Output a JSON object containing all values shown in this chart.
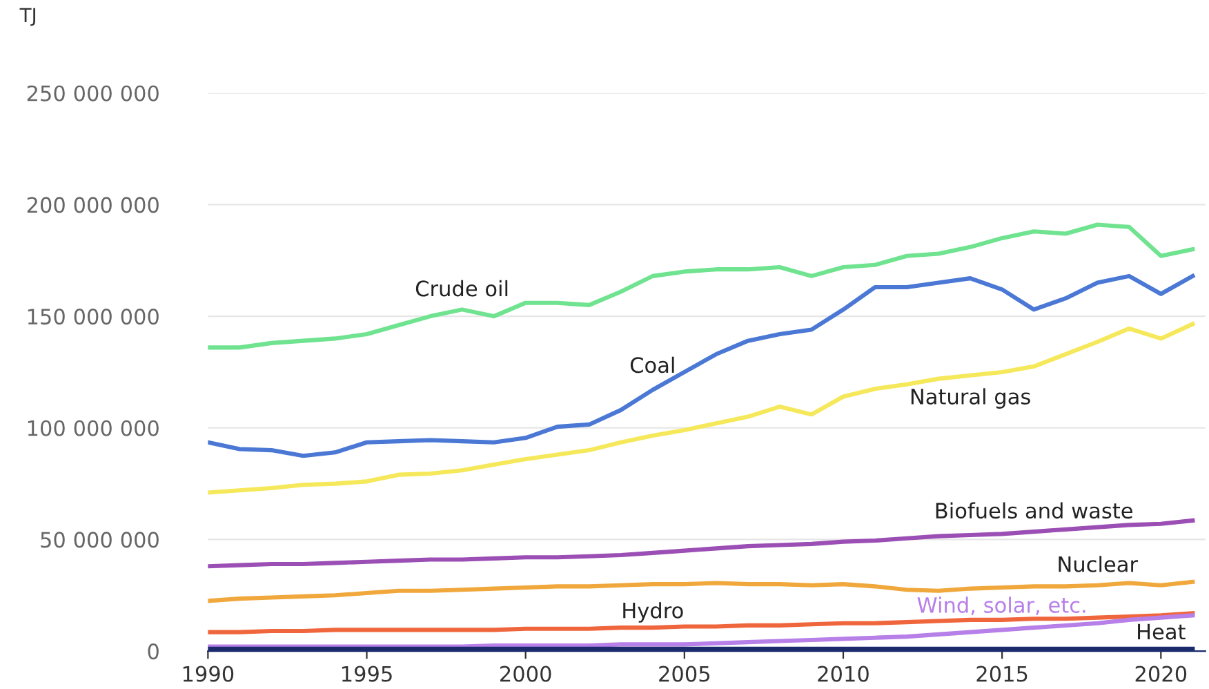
{
  "chart_data": {
    "type": "line",
    "ylabel": "TJ",
    "x": [
      1990,
      1991,
      1992,
      1993,
      1994,
      1995,
      1996,
      1997,
      1998,
      1999,
      2000,
      2001,
      2002,
      2003,
      2004,
      2005,
      2006,
      2007,
      2008,
      2009,
      2010,
      2011,
      2012,
      2013,
      2014,
      2015,
      2016,
      2017,
      2018,
      2019,
      2020,
      2021
    ],
    "series": [
      {
        "name": "Crude oil",
        "color": "#6fe38f",
        "values": [
          136000000,
          136000000,
          138000000,
          139000000,
          140000000,
          142000000,
          146000000,
          150000000,
          153000000,
          150000000,
          156000000,
          156000000,
          155000000,
          161000000,
          168000000,
          170000000,
          171000000,
          171000000,
          172000000,
          168000000,
          172000000,
          173000000,
          177000000,
          178000000,
          181000000,
          185000000,
          188000000,
          187000000,
          191000000,
          190000000,
          177000000,
          180000000
        ]
      },
      {
        "name": "Coal",
        "color": "#4a78d4",
        "values": [
          93500000,
          90500000,
          90000000,
          87500000,
          89000000,
          93500000,
          94000000,
          94500000,
          94000000,
          93500000,
          95500000,
          100500000,
          101500000,
          108000000,
          117000000,
          125000000,
          133000000,
          139000000,
          142000000,
          144000000,
          153000000,
          163000000,
          163000000,
          165000000,
          167000000,
          162000000,
          153000000,
          158000000,
          165000000,
          168000000,
          160000000,
          168000000
        ]
      },
      {
        "name": "Natural gas",
        "color": "#f5e85a",
        "values": [
          71000000,
          72000000,
          73000000,
          74500000,
          75000000,
          76000000,
          79000000,
          79500000,
          81000000,
          83500000,
          86000000,
          88000000,
          90000000,
          93500000,
          96500000,
          99000000,
          102000000,
          105000000,
          109500000,
          106000000,
          114000000,
          117500000,
          119500000,
          122000000,
          123500000,
          125000000,
          127500000,
          133000000,
          138500000,
          144500000,
          140000000,
          146500000
        ]
      },
      {
        "name": "Biofuels and waste",
        "color": "#9b4fb5",
        "values": [
          38000000,
          38500000,
          39000000,
          39000000,
          39500000,
          40000000,
          40500000,
          41000000,
          41000000,
          41500000,
          42000000,
          42000000,
          42500000,
          43000000,
          44000000,
          45000000,
          46000000,
          47000000,
          47500000,
          48000000,
          49000000,
          49500000,
          50500000,
          51500000,
          52000000,
          52500000,
          53500000,
          54500000,
          55500000,
          56500000,
          57000000,
          58500000
        ]
      },
      {
        "name": "Nuclear",
        "color": "#f0a83c",
        "values": [
          22500000,
          23500000,
          24000000,
          24500000,
          25000000,
          26000000,
          27000000,
          27000000,
          27500000,
          28000000,
          28500000,
          29000000,
          29000000,
          29500000,
          30000000,
          30000000,
          30500000,
          30000000,
          30000000,
          29500000,
          30000000,
          29000000,
          27500000,
          27000000,
          28000000,
          28500000,
          29000000,
          29000000,
          29500000,
          30500000,
          29500000,
          31000000
        ]
      },
      {
        "name": "Hydro",
        "color": "#f0663c",
        "values": [
          8500000,
          8500000,
          9000000,
          9000000,
          9500000,
          9500000,
          9500000,
          9500000,
          9500000,
          9500000,
          10000000,
          10000000,
          10000000,
          10500000,
          10500000,
          11000000,
          11000000,
          11500000,
          11500000,
          12000000,
          12500000,
          12500000,
          13000000,
          13500000,
          14000000,
          14000000,
          14500000,
          14500000,
          15000000,
          15500000,
          16000000,
          17000000
        ]
      },
      {
        "name": "Wind, solar, etc.",
        "color": "#b77fe8",
        "values": [
          2000000,
          2000000,
          2000000,
          2000000,
          2000000,
          2000000,
          2000000,
          2000000,
          2000000,
          2500000,
          2500000,
          2500000,
          2500000,
          3000000,
          3000000,
          3000000,
          3500000,
          4000000,
          4500000,
          5000000,
          5500000,
          6000000,
          6500000,
          7500000,
          8500000,
          9500000,
          10500000,
          11500000,
          12500000,
          14000000,
          15000000,
          16000000
        ]
      },
      {
        "name": "Heat",
        "color": "#1a2a6c",
        "values": [
          1000000,
          1000000,
          1000000,
          1000000,
          1000000,
          1000000,
          1000000,
          1000000,
          1000000,
          1000000,
          1000000,
          1000000,
          1000000,
          1000000,
          1000000,
          1000000,
          1000000,
          1000000,
          1000000,
          1000000,
          1000000,
          1000000,
          1000000,
          1000000,
          1000000,
          1000000,
          1000000,
          1000000,
          1000000,
          1000000,
          1000000,
          1000000
        ]
      }
    ],
    "xlim": [
      1990,
      2021.4
    ],
    "ylim": [
      0,
      250000000
    ],
    "xticks": [
      1990,
      1995,
      2000,
      2005,
      2010,
      2015,
      2020
    ],
    "yticks": [
      {
        "value": 0,
        "label": "0"
      },
      {
        "value": 50000000,
        "label": "50 000 000"
      },
      {
        "value": 100000000,
        "label": "100 000 000"
      },
      {
        "value": 150000000,
        "label": "150 000 000"
      },
      {
        "value": 200000000,
        "label": "200 000 000"
      },
      {
        "value": 250000000,
        "label": "250 000 000"
      }
    ],
    "grid": "y",
    "legend": false,
    "marker": "none",
    "line_style": "solid"
  }
}
